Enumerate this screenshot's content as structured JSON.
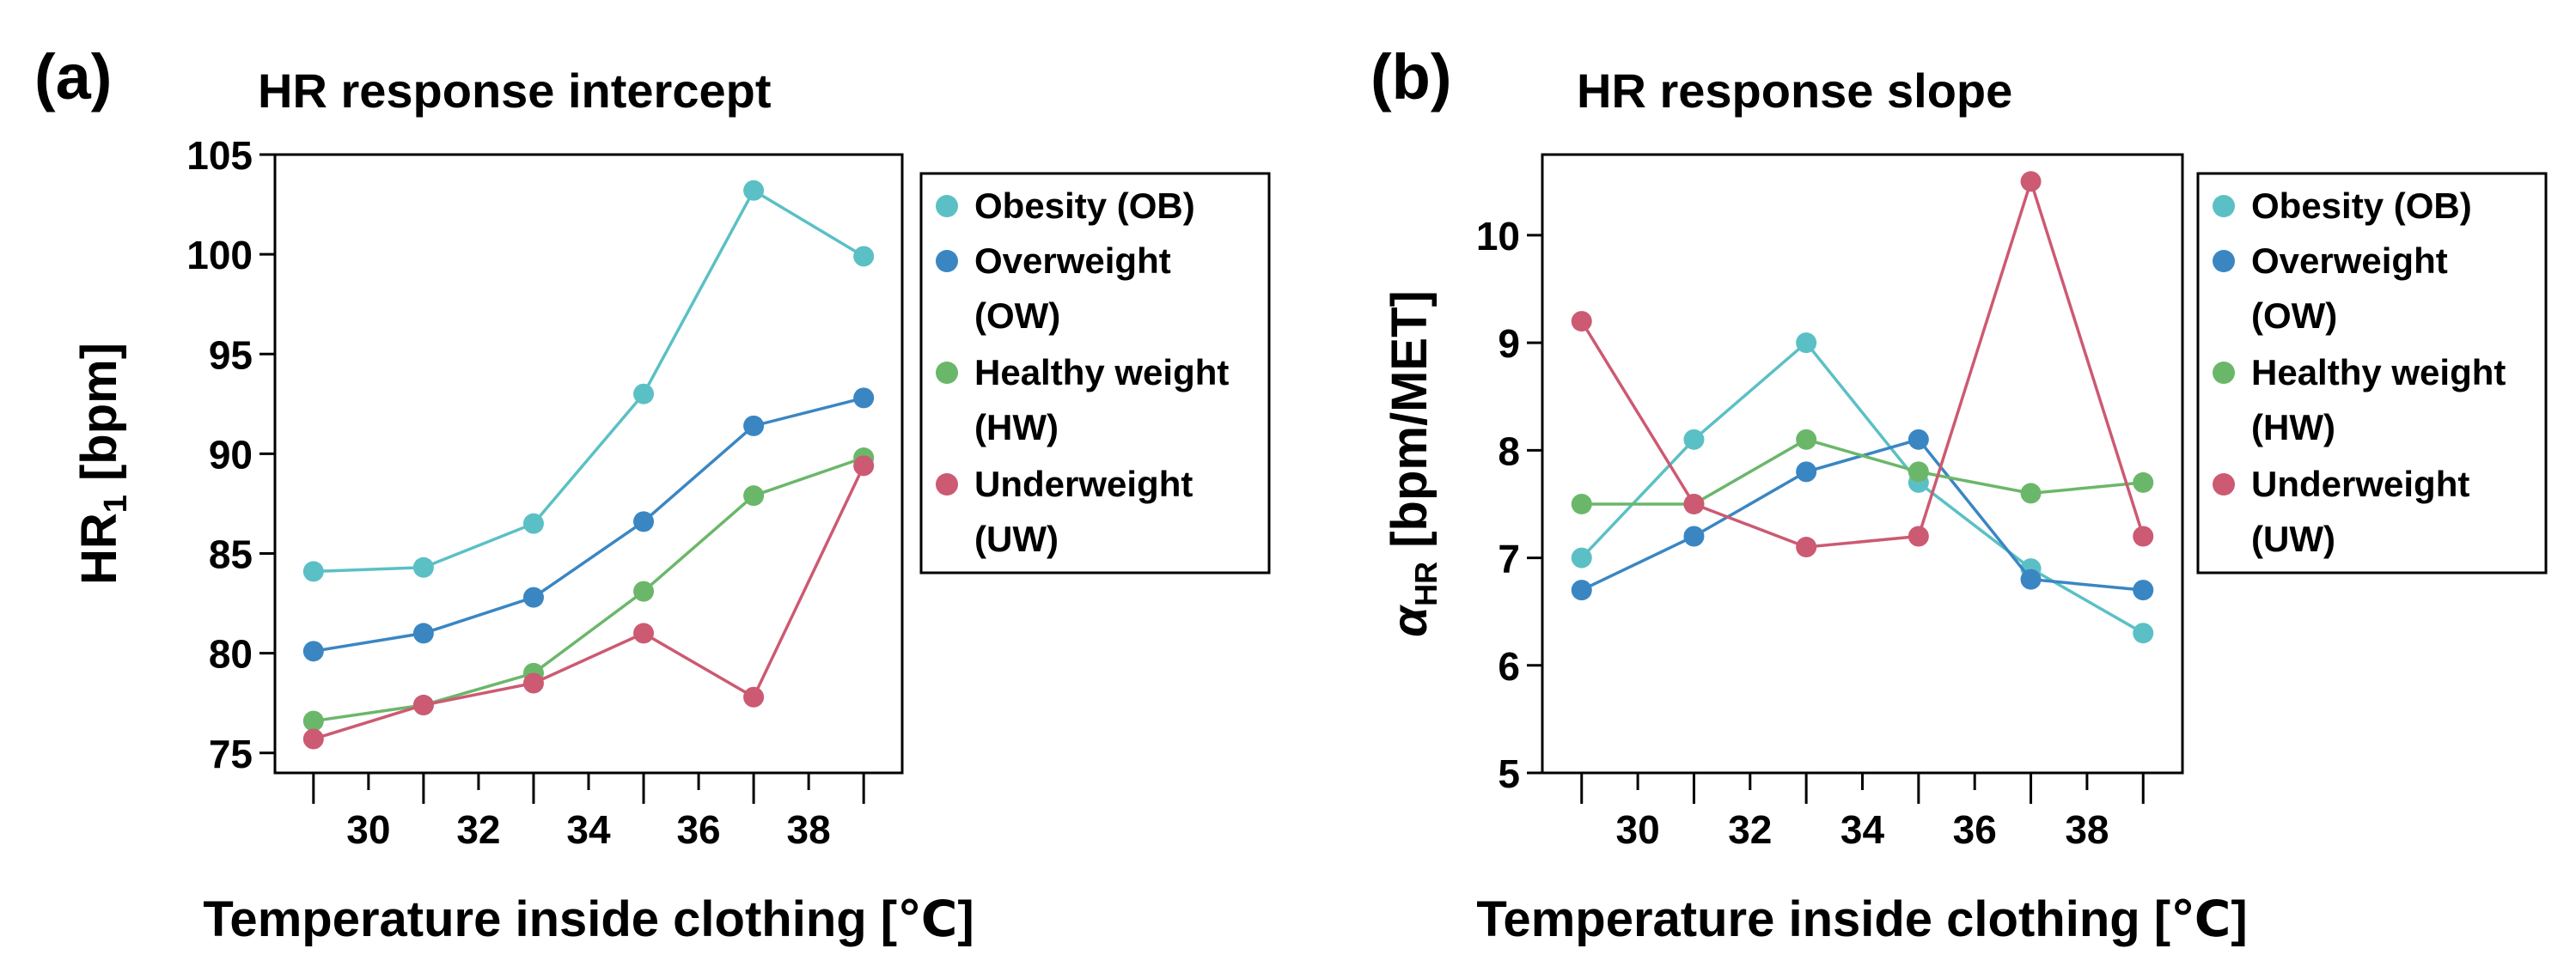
{
  "figure": {
    "legend": [
      {
        "lines": [
          "Obesity (OB)"
        ],
        "color": "#5BC0C5"
      },
      {
        "lines": [
          "Overweight",
          "(OW)"
        ],
        "color": "#3A86C3"
      },
      {
        "lines": [
          "Healthy weight",
          "(HW)"
        ],
        "color": "#6BB76A"
      },
      {
        "lines": [
          "Underweight",
          "(UW)"
        ],
        "color": "#CC5A72"
      }
    ]
  },
  "chart_data": [
    {
      "panel_label": "(a)",
      "type": "line",
      "title": "HR response intercept",
      "xlabel": "Temperature inside clothing [℃]",
      "ylabel_main": "HR",
      "ylabel_sub": "1",
      "ylabel_tail": " [bpm]",
      "x": [
        29,
        31,
        33,
        35,
        37,
        39
      ],
      "xticks": [
        30,
        32,
        34,
        36,
        38
      ],
      "xtick_labels": [
        "30",
        "32",
        "34",
        "36",
        "38"
      ],
      "xlim": [
        28.3,
        39.7
      ],
      "yticks": [
        75,
        80,
        85,
        90,
        95,
        100,
        105
      ],
      "ytick_labels": [
        "75",
        "80",
        "85",
        "90",
        "95",
        "100",
        "105"
      ],
      "ylim": [
        74,
        105
      ],
      "series": [
        {
          "name": "Obesity (OB)",
          "values": [
            84.1,
            84.3,
            86.5,
            93.0,
            103.2,
            99.9
          ]
        },
        {
          "name": "Overweight (OW)",
          "values": [
            80.1,
            81.0,
            82.8,
            86.6,
            91.4,
            92.8
          ]
        },
        {
          "name": "Healthy weight (HW)",
          "values": [
            76.6,
            77.4,
            79.0,
            83.1,
            87.9,
            89.8
          ]
        },
        {
          "name": "Underweight (UW)",
          "values": [
            75.7,
            77.4,
            78.5,
            81.0,
            77.8,
            89.4
          ]
        }
      ]
    },
    {
      "panel_label": "(b)",
      "type": "line",
      "title": "HR response slope",
      "xlabel": "Temperature inside clothing [℃]",
      "ylabel_main": "α",
      "ylabel_sub": "HR",
      "ylabel_tail": " [bpm/MET]",
      "x": [
        29,
        31,
        33,
        35,
        37,
        39
      ],
      "xticks": [
        30,
        32,
        34,
        36,
        38
      ],
      "xtick_labels": [
        "30",
        "32",
        "34",
        "36",
        "38"
      ],
      "xlim": [
        28.3,
        39.7
      ],
      "yticks": [
        5,
        6,
        7,
        8,
        9,
        10
      ],
      "ytick_labels": [
        "5",
        "6",
        "7",
        "8",
        "9",
        "10"
      ],
      "ylim": [
        5,
        10.75
      ],
      "series": [
        {
          "name": "Obesity (OB)",
          "values": [
            7.0,
            8.1,
            9.0,
            7.7,
            6.9,
            6.3
          ]
        },
        {
          "name": "Overweight (OW)",
          "values": [
            6.7,
            7.2,
            7.8,
            8.1,
            6.8,
            6.7
          ]
        },
        {
          "name": "Healthy weight (HW)",
          "values": [
            7.5,
            7.5,
            8.1,
            7.8,
            7.6,
            7.7
          ]
        },
        {
          "name": "Underweight (UW)",
          "values": [
            9.2,
            7.5,
            7.1,
            7.2,
            10.5,
            7.2
          ]
        }
      ]
    }
  ]
}
